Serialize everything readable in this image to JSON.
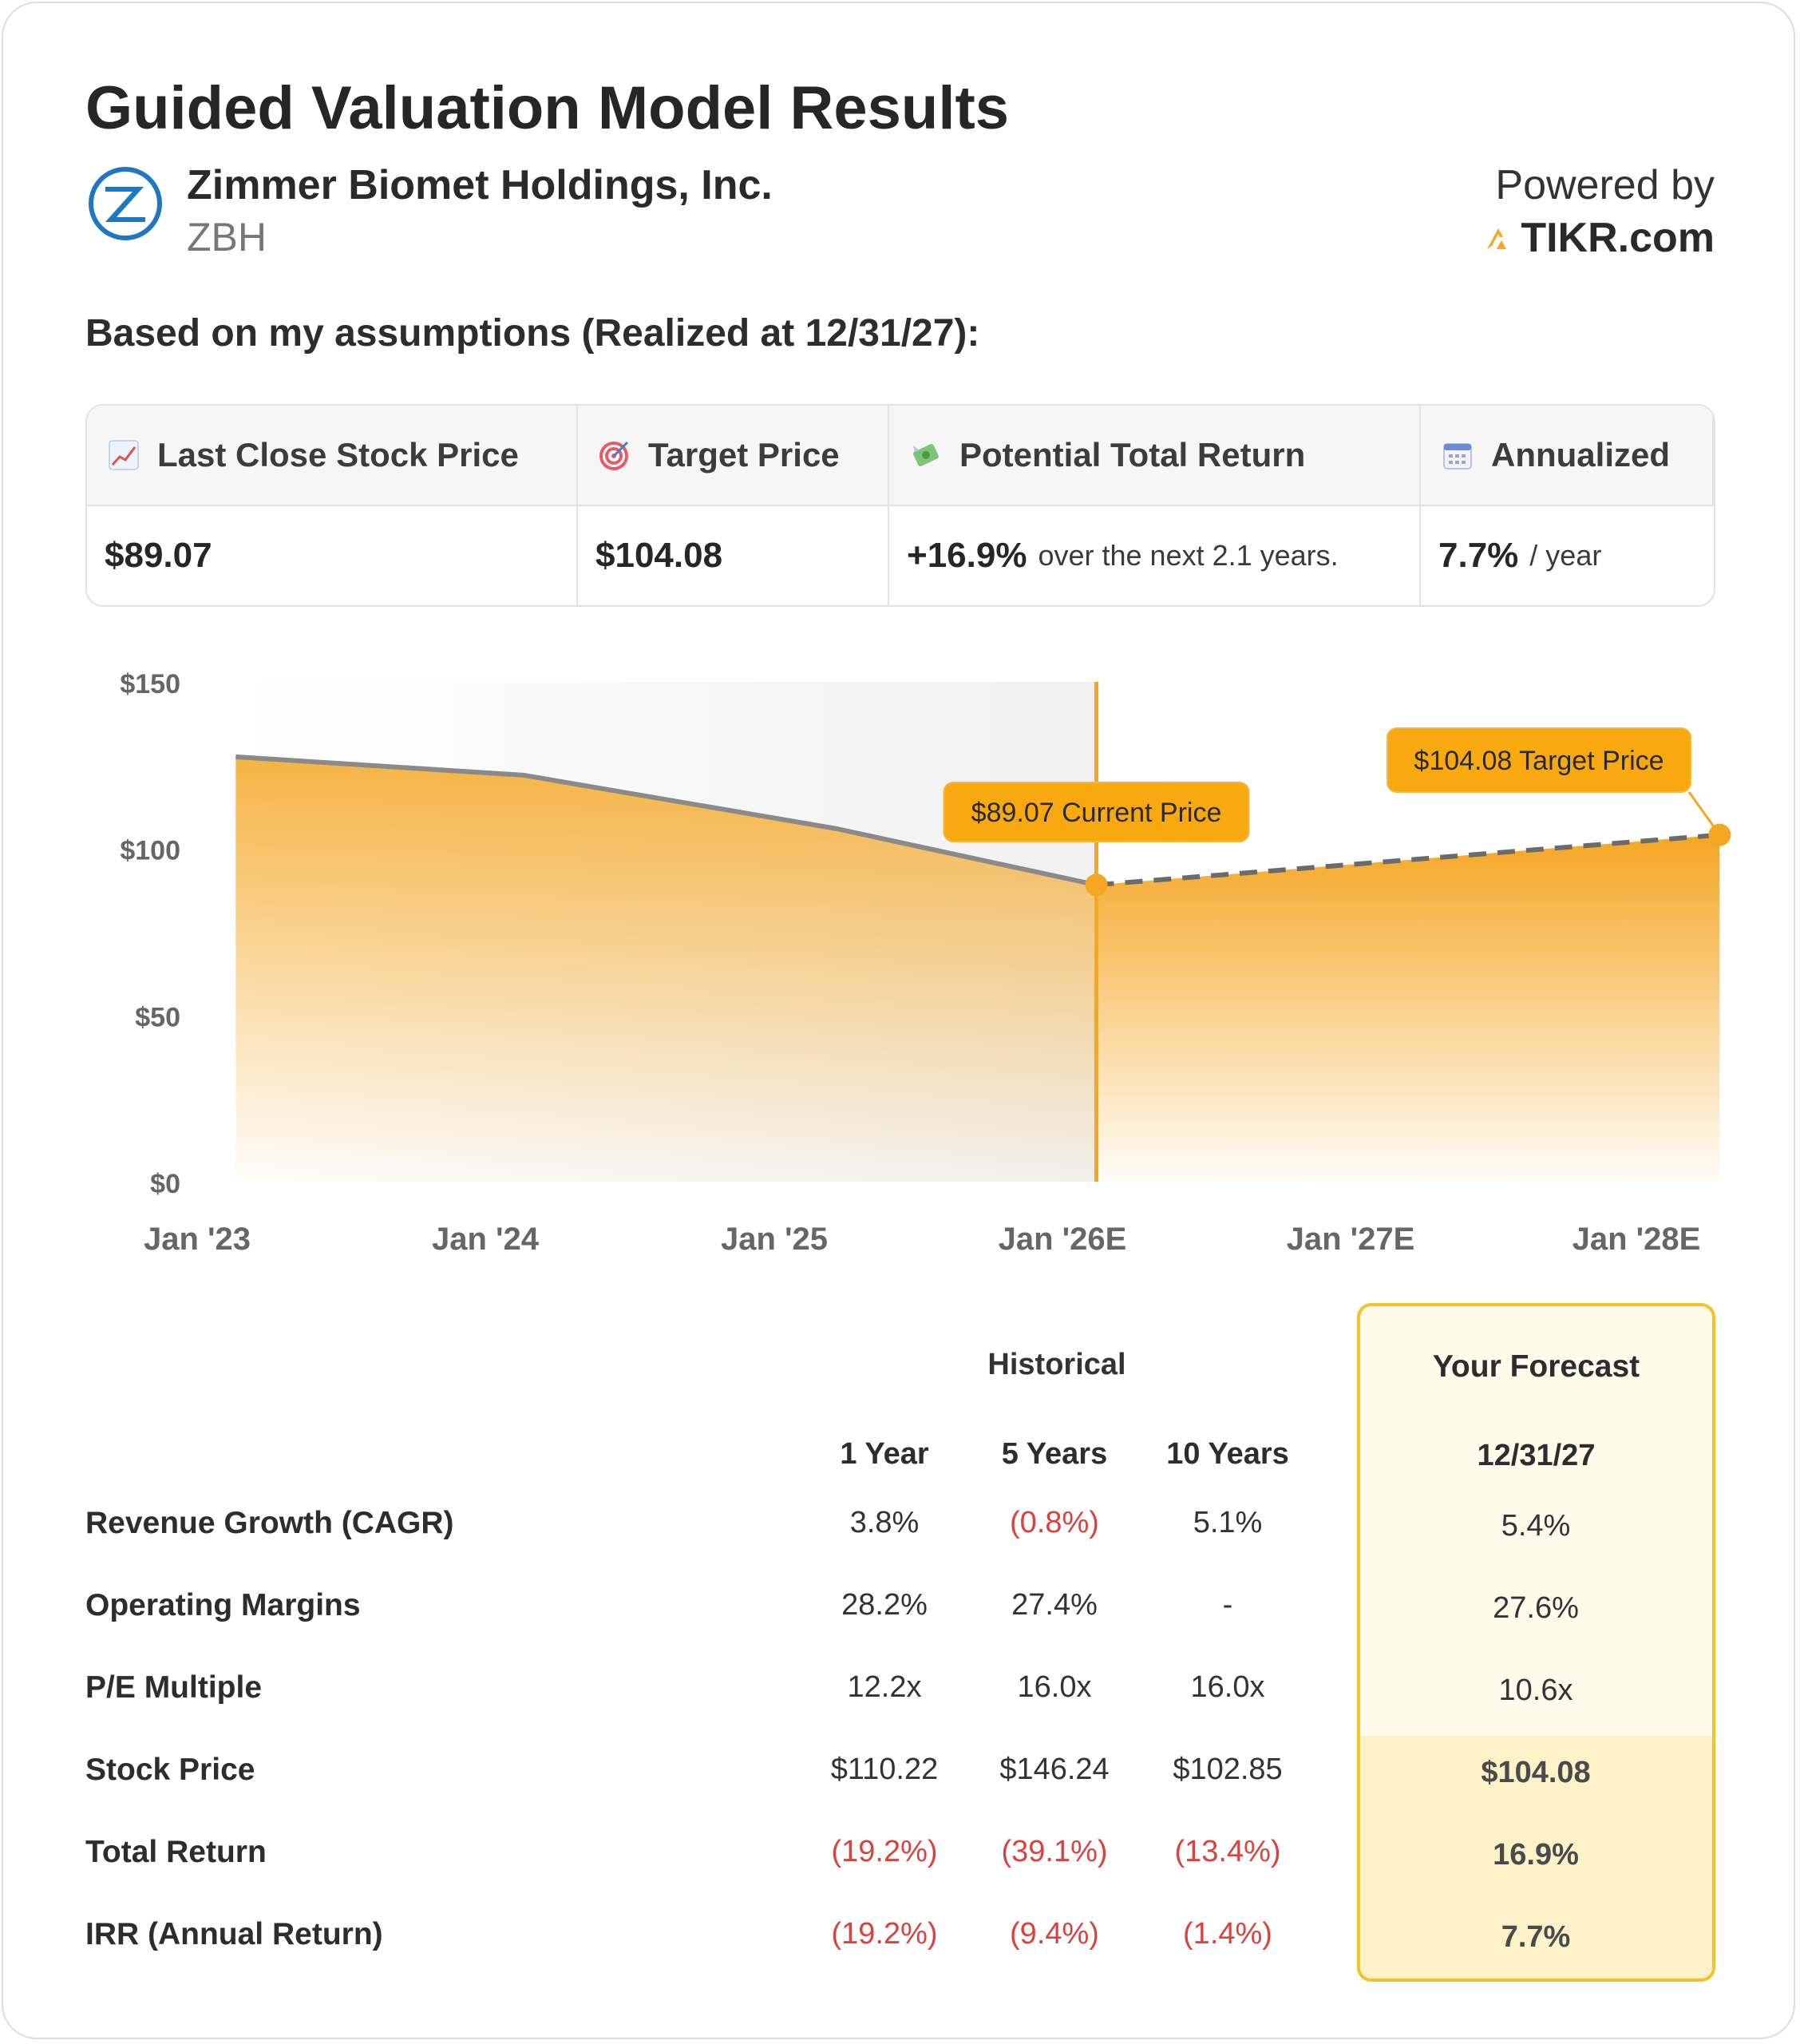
{
  "header": {
    "title": "Guided Valuation Model Results",
    "company": "Zimmer Biomet Holdings, Inc.",
    "ticker": "ZBH",
    "powered_by": "Powered by",
    "brand": "TIKR.com",
    "assumptions": "Based on my assumptions (Realized at 12/31/27):"
  },
  "summary": {
    "last_close_label": "Last Close Stock Price",
    "last_close_value": "$89.07",
    "target_label": "Target Price",
    "target_value": "$104.08",
    "return_label": "Potential Total Return",
    "return_value": "+16.9%",
    "return_suffix": "over the next 2.1 years.",
    "annualized_label": "Annualized",
    "annualized_value": "7.7%",
    "annualized_suffix": "/ year"
  },
  "chart_data": {
    "type": "area",
    "x": [
      "Jan '23",
      "Jan '24",
      "Jan '25",
      "Jan '26E",
      "Jan '27E",
      "Jan '28E"
    ],
    "x_tick_labels": [
      "Jan '23",
      "Jan '24",
      "Jan '25",
      "Jan '26E",
      "Jan '27E",
      "Jan '28E"
    ],
    "y_tick_labels": [
      "$150",
      "$100",
      "$50",
      "$0"
    ],
    "ylim": [
      0,
      150
    ],
    "series": [
      {
        "points": [
          {
            "x": 2023.13,
            "y": 127.5
          },
          {
            "x": 2024.1,
            "y": 122
          },
          {
            "x": 2025.15,
            "y": 106
          },
          {
            "x": 2026.03,
            "y": 89.07
          }
        ]
      },
      {
        "points": [
          {
            "x": 2026.03,
            "y": 89.07
          },
          {
            "x": 2028.13,
            "y": 104.08
          }
        ]
      }
    ],
    "annotations": [
      {
        "label": "$89.07 Current Price",
        "x": 2026.03,
        "y": 89.07
      },
      {
        "label": "$104.08 Target Price",
        "x": 2028.13,
        "y": 104.08
      }
    ],
    "colors": {
      "fill": "#f5a623",
      "line": "#8a8a8a",
      "marker": "#f5a623",
      "history_bg": "#f1f1f1"
    }
  },
  "table": {
    "historical_label": "Historical",
    "forecast_label": "Your Forecast",
    "columns": [
      "1 Year",
      "5 Years",
      "10 Years"
    ],
    "forecast_date": "12/31/27",
    "rows": [
      {
        "label": "Revenue Growth (CAGR)",
        "values": [
          "3.8%",
          "(0.8%)",
          "5.1%"
        ],
        "forecast": "5.4%"
      },
      {
        "label": "Operating Margins",
        "values": [
          "28.2%",
          "27.4%",
          "-"
        ],
        "forecast": "27.6%"
      },
      {
        "label": "P/E Multiple",
        "values": [
          "12.2x",
          "16.0x",
          "16.0x"
        ],
        "forecast": "10.6x"
      },
      {
        "label": "Stock Price",
        "values": [
          "$110.22",
          "$146.24",
          "$102.85"
        ],
        "forecast": "$104.08"
      },
      {
        "label": "Total Return",
        "values": [
          "(19.2%)",
          "(39.1%)",
          "(13.4%)"
        ],
        "forecast": "16.9%"
      },
      {
        "label": "IRR (Annual Return)",
        "values": [
          "(19.2%)",
          "(9.4%)",
          "(1.4%)"
        ],
        "forecast": "7.7%"
      }
    ]
  }
}
